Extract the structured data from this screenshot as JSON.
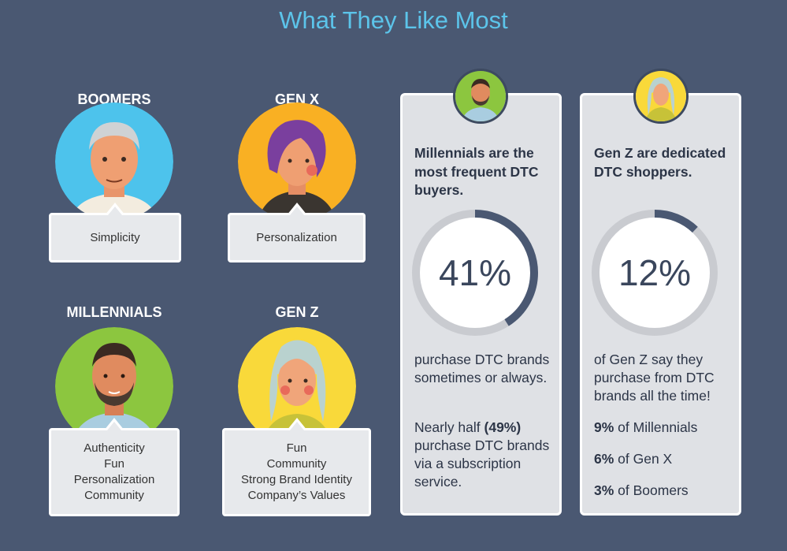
{
  "title": "What They Like Most",
  "generations": {
    "boomers": {
      "label": "BOOMERS",
      "likes": [
        "Simplicity"
      ]
    },
    "genx": {
      "label": "GEN X",
      "likes": [
        "Personalization"
      ]
    },
    "millennials": {
      "label": "MILLENNIALS",
      "likes": [
        "Authenticity",
        "Fun",
        "Personalization",
        "Community"
      ]
    },
    "genz": {
      "label": "GEN Z",
      "likes": [
        "Fun",
        "Community",
        "Strong Brand Identity",
        "Company’s Values"
      ]
    }
  },
  "cards": {
    "millennials": {
      "heading": "Millennials are the most frequent DTC buyers.",
      "percent_text": "41%",
      "percent_value": 0.41,
      "text1": "purchase DTC brands sometimes or always.",
      "text2_prefix": "Nearly half ",
      "text2_bold": "(49%)",
      "text2_suffix": " purchase DTC brands via a subscription service."
    },
    "genz": {
      "heading": "Gen Z are dedicated DTC shoppers.",
      "percent_text": "12%",
      "percent_value": 0.12,
      "text1": "of Gen Z say they purchase from DTC brands all the time!",
      "stats": [
        {
          "value": "9%",
          "label": " of Millennials"
        },
        {
          "value": "6%",
          "label": " of Gen X"
        },
        {
          "value": "3%",
          "label": " of Boomers"
        }
      ]
    }
  },
  "colors": {
    "background": "#4a5872",
    "title": "#5cc4ea",
    "ring_track": "#c9cbd0",
    "ring_fill": "#4a5872",
    "boomers_circle": "#4dc3ec",
    "genx_circle": "#f9b023",
    "millennials_circle": "#8cc63f",
    "genz_circle": "#f9d93a"
  },
  "icons": {
    "boomers": "boomer-portrait-icon",
    "genx": "genx-portrait-icon",
    "millennials": "millennial-portrait-icon",
    "genz": "genz-portrait-icon"
  }
}
